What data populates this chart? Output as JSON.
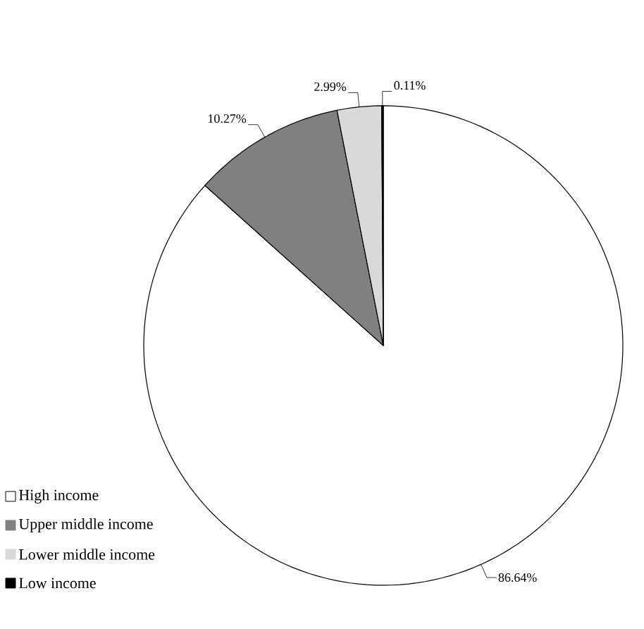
{
  "chart_data": {
    "type": "pie",
    "categories": [
      "High income",
      "Upper middle income",
      "Lower middle income",
      "Low income"
    ],
    "values": [
      86.64,
      10.27,
      2.99,
      0.11
    ],
    "colors": [
      "#ffffff",
      "#808080",
      "#d9d9d9",
      "#000000"
    ],
    "value_labels": [
      "86.64%",
      "10.27%",
      "2.99%",
      "0.11%"
    ],
    "legend": "bottom left"
  }
}
